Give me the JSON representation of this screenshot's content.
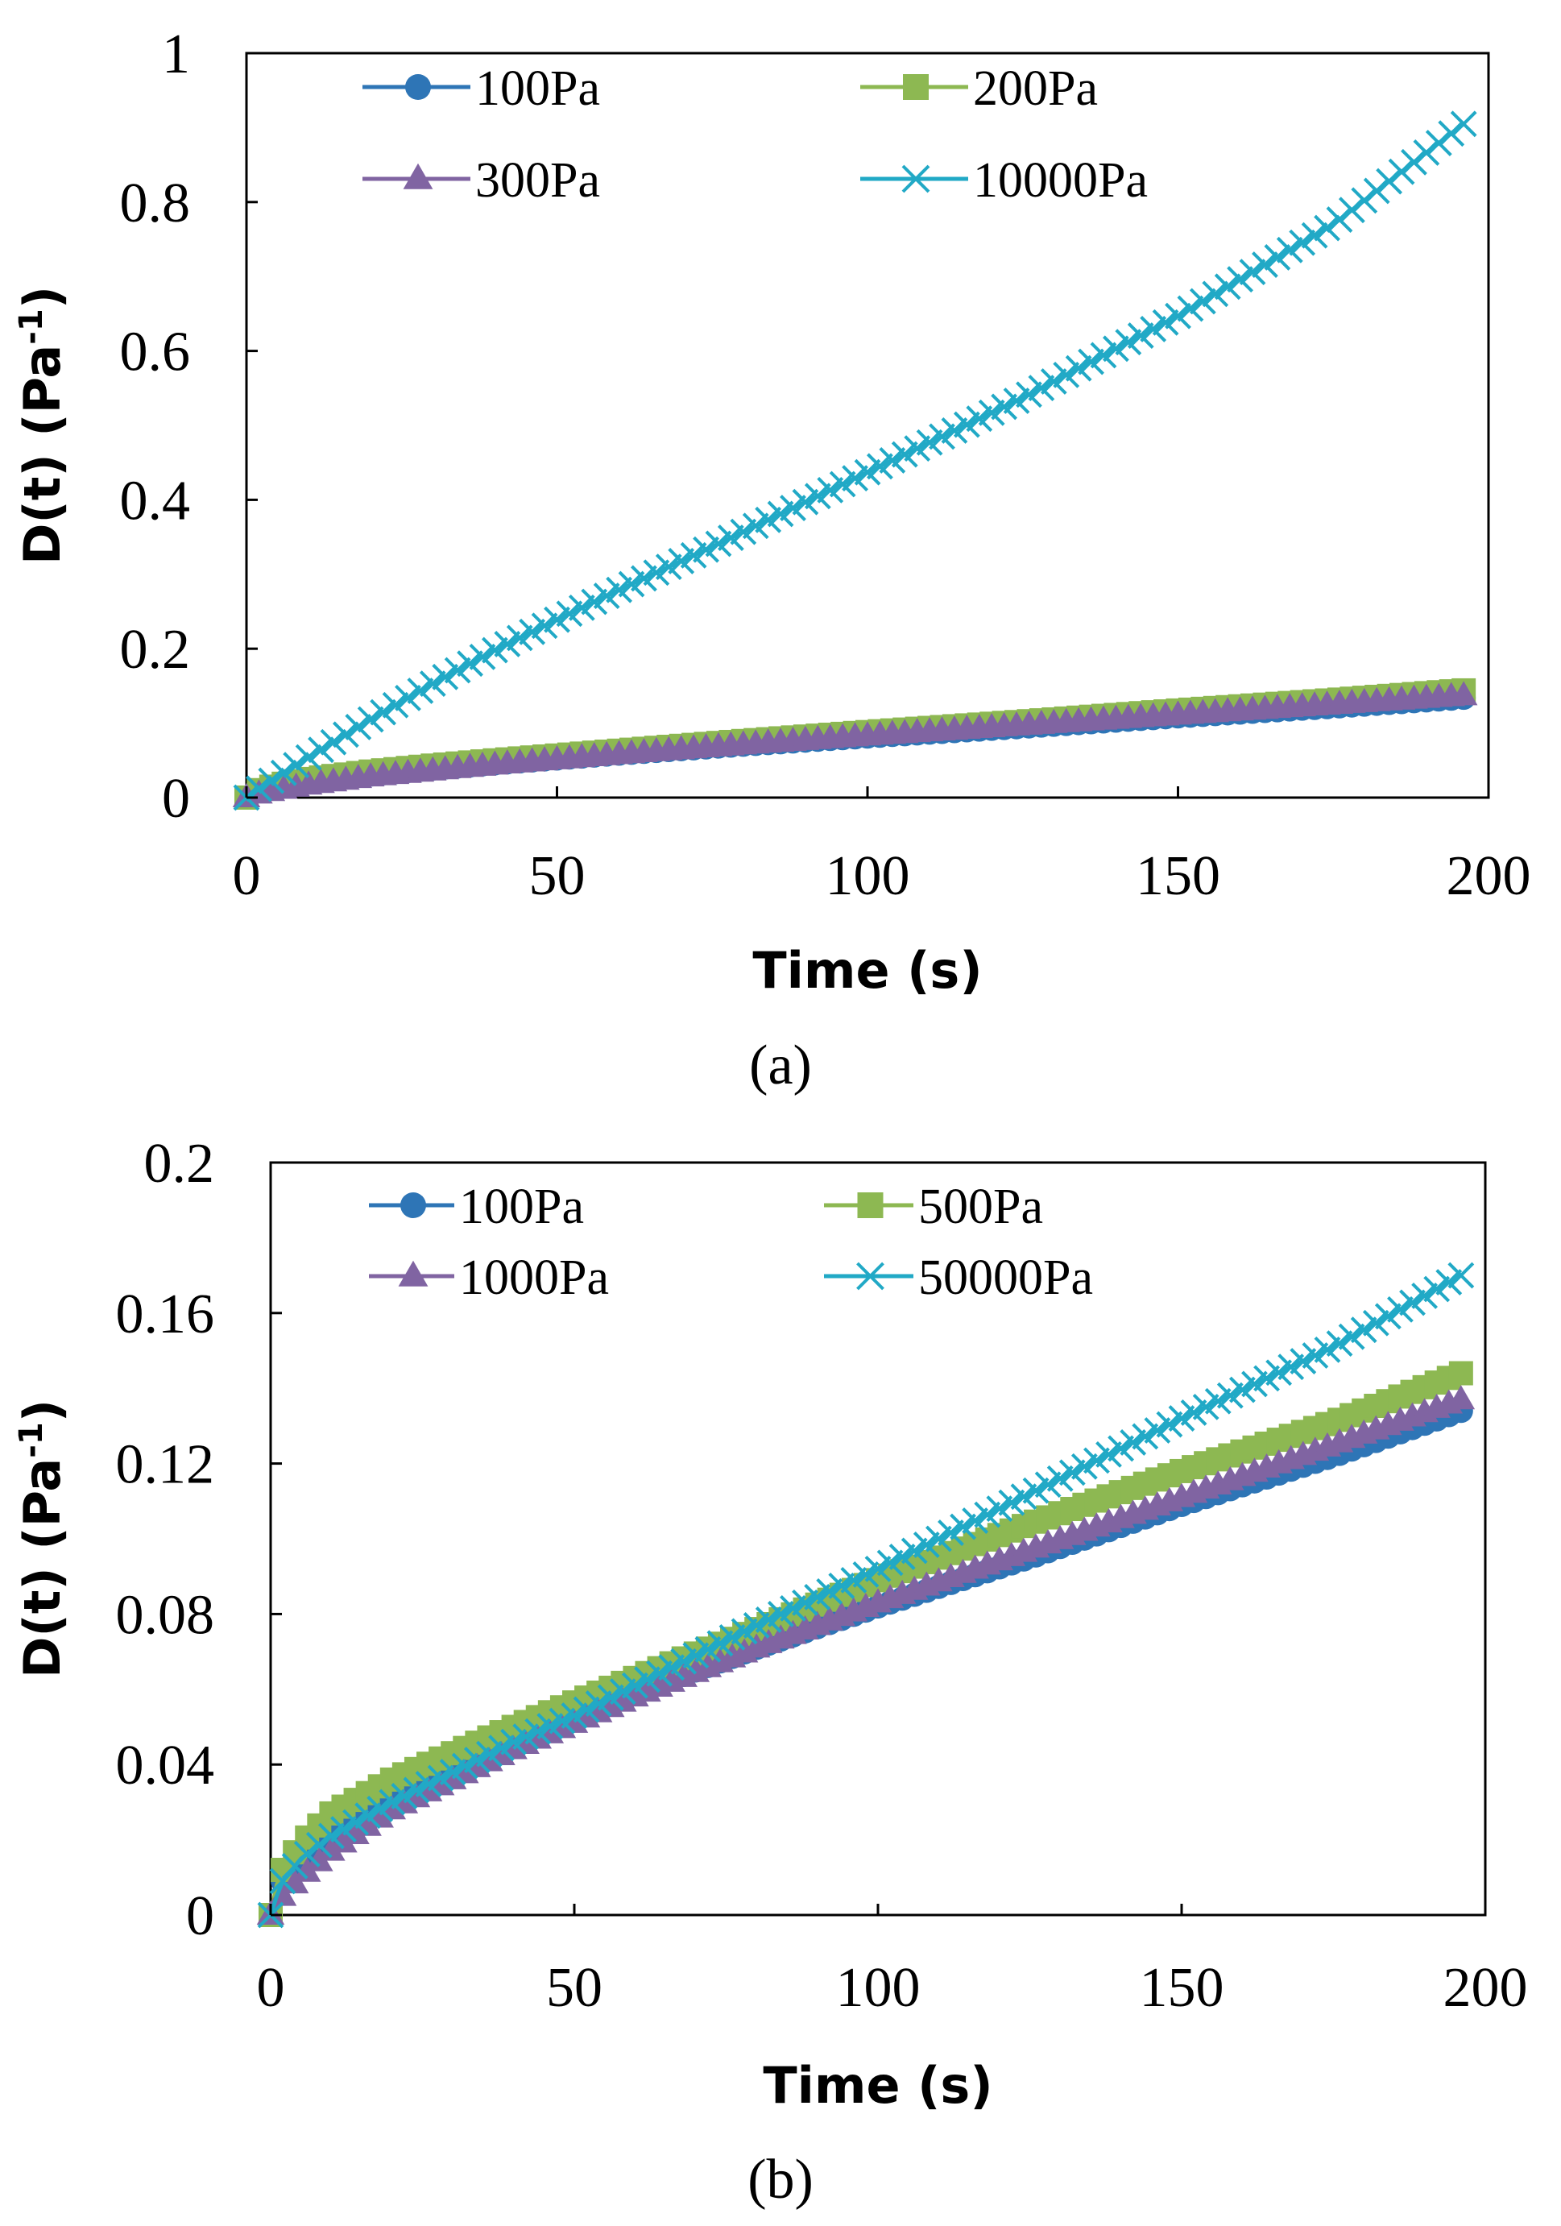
{
  "colors": {
    "s100": "#2E75B6",
    "green": "#8DB852",
    "purple": "#8064A2",
    "cyan": "#21A9C6"
  },
  "chart_data": [
    {
      "type": "scatter",
      "caption": "(a)",
      "xlabel": "Time (s)",
      "ylabel": "D(t) (Pa",
      "ylabel_sup": "-1",
      "ylabel_end": ")",
      "xlim": [
        0,
        200
      ],
      "ylim": [
        0,
        1
      ],
      "xticks": [
        0,
        50,
        100,
        150,
        200
      ],
      "xtick_labels": [
        "0",
        "50",
        "100",
        "150",
        "200"
      ],
      "yticks": [
        0,
        0.2,
        0.4,
        0.6,
        0.8,
        1
      ],
      "ytick_labels": [
        "0",
        "0.2",
        "0.4",
        "0.6",
        "0.8",
        "1"
      ],
      "grid": false,
      "legend": "top",
      "series": [
        {
          "name": "100Pa",
          "marker": "circle",
          "color": "#2E75B6",
          "x": [
            0,
            1,
            2,
            5,
            10,
            20,
            30,
            40,
            60,
            80,
            100,
            125,
            150,
            175,
            196
          ],
          "y": [
            0,
            0.006,
            0.009,
            0.015,
            0.022,
            0.031,
            0.039,
            0.046,
            0.059,
            0.071,
            0.082,
            0.095,
            0.109,
            0.122,
            0.134
          ]
        },
        {
          "name": "200Pa",
          "marker": "square",
          "color": "#8DB852",
          "x": [
            0,
            1,
            2,
            5,
            10,
            20,
            30,
            40,
            60,
            80,
            100,
            125,
            150,
            175,
            196
          ],
          "y": [
            0,
            0.007,
            0.01,
            0.017,
            0.025,
            0.035,
            0.043,
            0.05,
            0.063,
            0.076,
            0.088,
            0.102,
            0.117,
            0.131,
            0.144
          ]
        },
        {
          "name": "300Pa",
          "marker": "triangle",
          "color": "#8064A2",
          "x": [
            0,
            1,
            2,
            5,
            10,
            20,
            30,
            40,
            60,
            80,
            100,
            125,
            150,
            175,
            196
          ],
          "y": [
            0,
            0.002,
            0.005,
            0.01,
            0.017,
            0.028,
            0.036,
            0.044,
            0.058,
            0.071,
            0.083,
            0.097,
            0.111,
            0.125,
            0.137
          ]
        },
        {
          "name": "10000Pa",
          "marker": "x",
          "color": "#21A9C6",
          "x": [
            0,
            1,
            2,
            5,
            10,
            20,
            30,
            40,
            50,
            60,
            75,
            100,
            125,
            150,
            175,
            196
          ],
          "y": [
            0,
            0.006,
            0.012,
            0.028,
            0.054,
            0.105,
            0.153,
            0.198,
            0.239,
            0.279,
            0.337,
            0.437,
            0.537,
            0.647,
            0.77,
            0.905
          ]
        }
      ]
    },
    {
      "type": "scatter",
      "caption": "(b)",
      "xlabel": "Time (s)",
      "ylabel": "D(t) (Pa",
      "ylabel_sup": "-1",
      "ylabel_end": ")",
      "xlim": [
        0,
        200
      ],
      "ylim": [
        0,
        0.2
      ],
      "xticks": [
        0,
        50,
        100,
        150,
        200
      ],
      "xtick_labels": [
        "0",
        "50",
        "100",
        "150",
        "200"
      ],
      "yticks": [
        0,
        0.04,
        0.08,
        0.12,
        0.16,
        0.2
      ],
      "ytick_labels": [
        "0",
        "0.04",
        "0.08",
        "0.12",
        "0.16",
        "0.2"
      ],
      "grid": false,
      "legend": "top",
      "series": [
        {
          "name": "100Pa",
          "marker": "circle",
          "color": "#2E75B6",
          "x": [
            0,
            1,
            2,
            5,
            10,
            20,
            30,
            40,
            60,
            80,
            100,
            125,
            150,
            175,
            196
          ],
          "y": [
            0,
            0.006,
            0.009,
            0.015,
            0.022,
            0.031,
            0.039,
            0.046,
            0.059,
            0.071,
            0.082,
            0.095,
            0.109,
            0.122,
            0.134
          ]
        },
        {
          "name": "500Pa",
          "marker": "square",
          "color": "#8DB852",
          "x": [
            0,
            1,
            2,
            5,
            10,
            20,
            30,
            40,
            60,
            80,
            100,
            125,
            150,
            175,
            196
          ],
          "y": [
            0,
            0.008,
            0.012,
            0.019,
            0.027,
            0.036,
            0.043,
            0.05,
            0.063,
            0.076,
            0.089,
            0.104,
            0.118,
            0.131,
            0.144
          ]
        },
        {
          "name": "1000Pa",
          "marker": "triangle",
          "color": "#8064A2",
          "x": [
            0,
            1,
            2,
            5,
            10,
            20,
            30,
            40,
            60,
            80,
            100,
            125,
            150,
            175,
            196
          ],
          "y": [
            0,
            0.002,
            0.005,
            0.01,
            0.017,
            0.028,
            0.036,
            0.044,
            0.058,
            0.071,
            0.083,
            0.097,
            0.111,
            0.125,
            0.137
          ]
        },
        {
          "name": "50000Pa",
          "marker": "x",
          "color": "#21A9C6",
          "x": [
            0,
            1,
            2,
            5,
            10,
            20,
            30,
            40,
            50,
            60,
            80,
            100,
            125,
            150,
            175,
            196
          ],
          "y": [
            0,
            0.005,
            0.009,
            0.015,
            0.021,
            0.03,
            0.038,
            0.046,
            0.053,
            0.061,
            0.077,
            0.092,
            0.112,
            0.132,
            0.151,
            0.17
          ]
        }
      ]
    }
  ]
}
